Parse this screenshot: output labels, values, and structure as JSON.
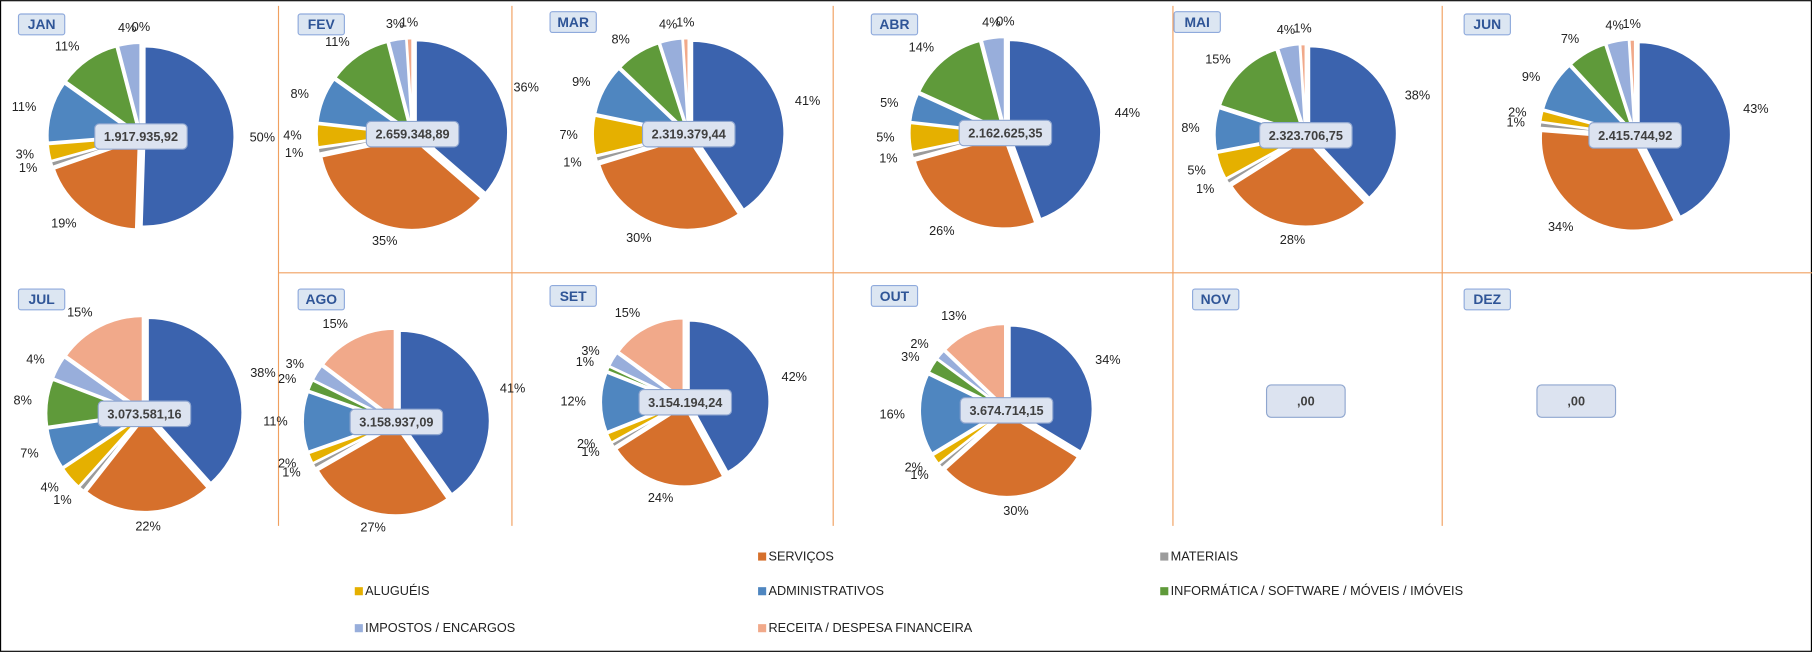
{
  "legend": {
    "categories": [
      null,
      "SERVIÇOS",
      "MATERIAIS",
      "ALUGUÉIS",
      "ADMINISTRATIVOS",
      "INFORMÁTICA / SOFTWARE / MÓVEIS / IMÓVEIS",
      "IMPOSTOS / ENCARGOS",
      "RECEITA / DESPESA FINANCEIRA"
    ],
    "colors": [
      "#3b63ae",
      "#d6702c",
      "#9b9b9b",
      "#e5b000",
      "#4f86c0",
      "#5f9a3a",
      "#98aedb",
      "#f1a98a"
    ]
  },
  "chart_data": [
    {
      "type": "pie",
      "title": "JAN",
      "total_label": "1.917.935,92",
      "values": [
        50,
        19,
        1,
        3,
        11,
        11,
        4,
        0
      ],
      "value_labels": [
        "50%",
        "19%",
        "1%",
        "3%",
        "11%",
        "11%",
        "4%",
        "0%"
      ]
    },
    {
      "type": "pie",
      "title": "FEV",
      "total_label": "2.659.348,89",
      "values": [
        36,
        35,
        1,
        4,
        8,
        11,
        3,
        1
      ],
      "value_labels": [
        "36%",
        "35%",
        "1%",
        "4%",
        "8%",
        "11%",
        "3%",
        "1%"
      ]
    },
    {
      "type": "pie",
      "title": "MAR",
      "total_label": "2.319.379,44",
      "values": [
        41,
        30,
        1,
        7,
        9,
        8,
        4,
        1
      ],
      "value_labels": [
        "41%",
        "30%",
        "1%",
        "7%",
        "9%",
        "8%",
        "4%",
        "1%"
      ]
    },
    {
      "type": "pie",
      "title": "ABR",
      "total_label": "2.162.625,35",
      "values": [
        44,
        26,
        1,
        5,
        5,
        14,
        4,
        0
      ],
      "value_labels": [
        "44%",
        "26%",
        "1%",
        "5%",
        "5%",
        "14%",
        "4%",
        "0%"
      ]
    },
    {
      "type": "pie",
      "title": "MAI",
      "total_label": "2.323.706,75",
      "values": [
        38,
        28,
        1,
        5,
        8,
        15,
        4,
        1
      ],
      "value_labels": [
        "38%",
        "28%",
        "1%",
        "5%",
        "8%",
        "15%",
        "4%",
        "1%"
      ]
    },
    {
      "type": "pie",
      "title": "JUN",
      "total_label": "2.415.744,92",
      "values": [
        43,
        34,
        1,
        2,
        9,
        7,
        4,
        1
      ],
      "value_labels": [
        "43%",
        "34%",
        "1%",
        "2%",
        "9%",
        "7%",
        "4%",
        "1%"
      ]
    },
    {
      "type": "pie",
      "title": "JUL",
      "total_label": "3.073.581,16",
      "values": [
        38,
        22,
        1,
        4,
        7,
        8,
        4,
        15
      ],
      "value_labels": [
        "38%",
        "22%",
        "1%",
        "4%",
        "7%",
        "8%",
        "4%",
        "15%"
      ]
    },
    {
      "type": "pie",
      "title": "AGO",
      "total_label": "3.158.937,09",
      "values": [
        41,
        27,
        1,
        2,
        11,
        2,
        3,
        15
      ],
      "value_labels": [
        "41%",
        "27%",
        "1%",
        "2%",
        "11%",
        "2%",
        "3%",
        "15%"
      ]
    },
    {
      "type": "pie",
      "title": "SET",
      "total_label": "3.154.194,24",
      "values": [
        42,
        24,
        1,
        2,
        12,
        1,
        3,
        15
      ],
      "value_labels": [
        "42%",
        "24%",
        "1%",
        "2%",
        "12%",
        "1%",
        "3%",
        "15%"
      ]
    },
    {
      "type": "pie",
      "title": "OUT",
      "total_label": "3.674.714,15",
      "values": [
        34,
        30,
        1,
        2,
        16,
        3,
        2,
        13
      ],
      "value_labels": [
        "34%",
        "30%",
        "1%",
        "2%",
        "16%",
        "3%",
        "2%",
        "13%"
      ]
    },
    {
      "type": "pie",
      "title": "NOV",
      "total_label": ",00"
    },
    {
      "type": "pie",
      "title": "DEZ",
      "total_label": ",00"
    }
  ]
}
